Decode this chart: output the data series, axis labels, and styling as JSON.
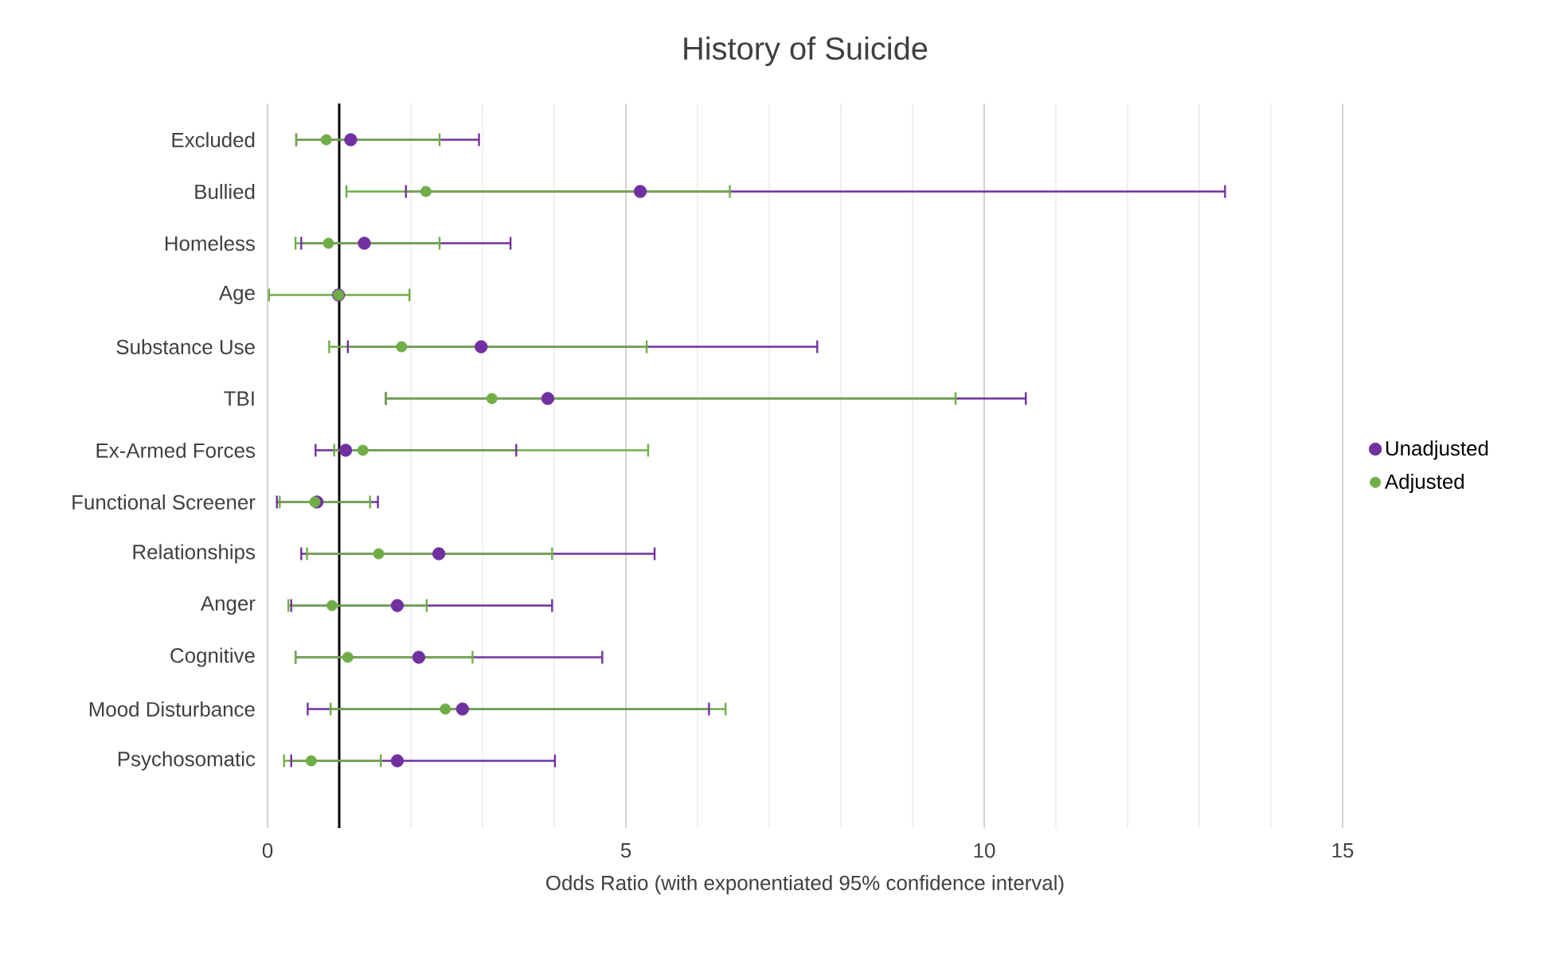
{
  "chart_data": {
    "type": "scatter",
    "orientation": "horizontal",
    "title": "History of Suicide",
    "xlabel": "Odds Ratio (with exponentiated  95% confidence interval)",
    "categories": [
      "Excluded",
      "Bullied",
      "Homeless",
      "Age",
      "Substance Use",
      "TBI",
      "Ex-Armed Forces",
      "Functional Screener",
      "Relationships",
      "Anger",
      "Cognitive",
      "Mood Disturbance",
      "Psychosomatic"
    ],
    "series": [
      {
        "name": "Unadjusted",
        "color": "#7030a0",
        "values": [
          1.16,
          5.2,
          1.35,
          0.99,
          2.98,
          3.91,
          1.09,
          0.69,
          2.39,
          1.81,
          2.11,
          2.72,
          1.81
        ],
        "errors": [
          [
            0.4,
            2.95
          ],
          [
            1.93,
            13.36
          ],
          [
            0.47,
            3.39
          ],
          null,
          [
            1.12,
            7.67
          ],
          [
            1.65,
            10.58
          ],
          [
            0.67,
            3.47
          ],
          [
            0.13,
            1.54
          ],
          [
            0.47,
            5.4
          ],
          [
            0.33,
            3.97
          ],
          [
            0.39,
            4.67
          ],
          [
            0.56,
            6.16
          ],
          [
            0.33,
            4.01
          ]
        ]
      },
      {
        "name": "Adjusted",
        "color": "#70ad47",
        "values": [
          0.82,
          2.21,
          0.85,
          0.99,
          1.87,
          3.13,
          1.33,
          0.66,
          1.55,
          0.9,
          1.12,
          2.48,
          0.61
        ],
        "errors": [
          [
            0.4,
            2.4
          ],
          [
            1.1,
            6.45
          ],
          [
            0.39,
            2.4
          ],
          [
            0.02,
            1.98
          ],
          [
            0.86,
            5.29
          ],
          [
            1.65,
            9.6
          ],
          [
            0.93,
            5.31
          ],
          [
            0.17,
            1.43
          ],
          [
            0.55,
            3.97
          ],
          [
            0.29,
            2.22
          ],
          [
            0.39,
            2.86
          ],
          [
            0.88,
            6.39
          ],
          [
            0.23,
            1.58
          ]
        ]
      }
    ],
    "xlim": [
      0,
      15
    ],
    "xticks": [
      0,
      5,
      10,
      15
    ],
    "grid": "x",
    "legend": "right",
    "marker": "circle",
    "ref_lines": [
      {
        "axis": "x",
        "value": 1,
        "color": "#000000",
        "line_style": "solid"
      }
    ]
  }
}
